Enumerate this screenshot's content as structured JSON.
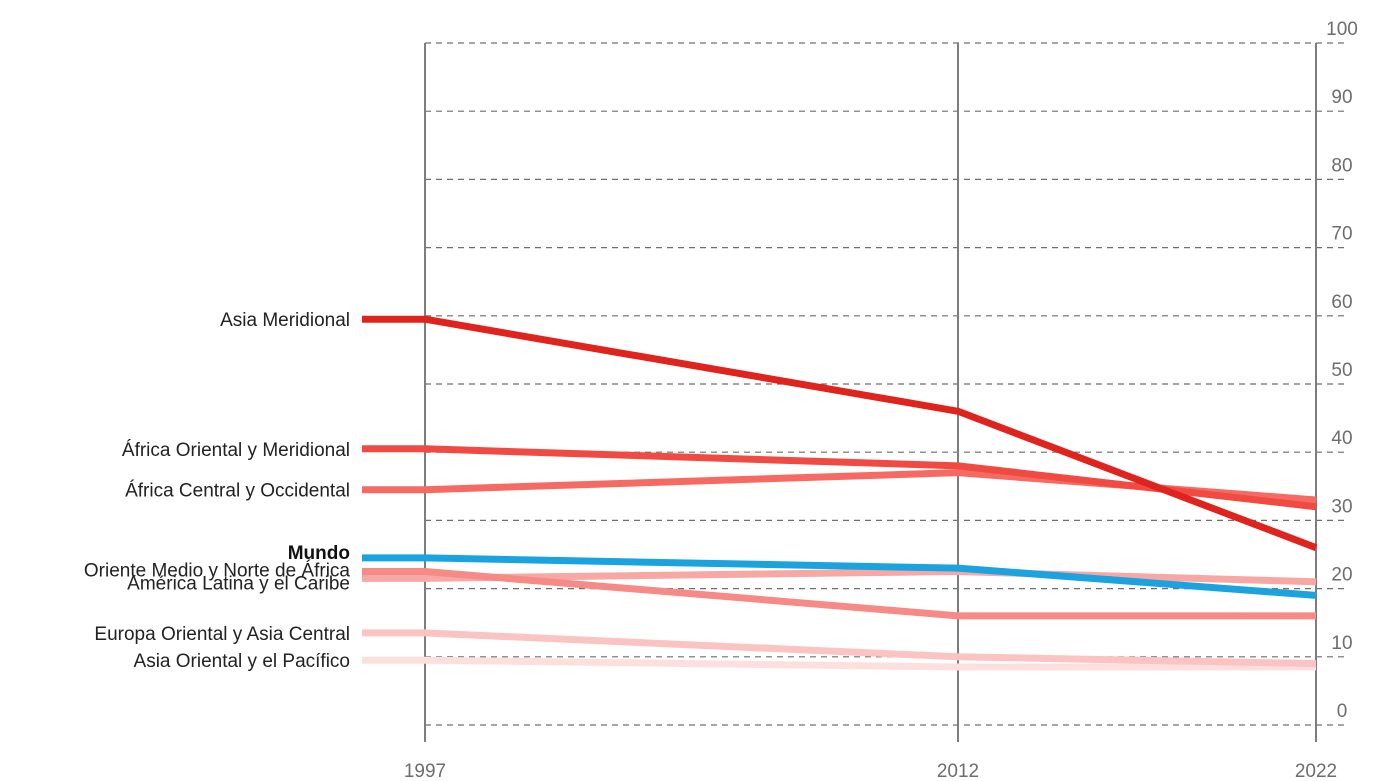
{
  "chart_data": {
    "type": "line",
    "title": "",
    "xlabel": "",
    "ylabel": "",
    "x": [
      "1997",
      "2012",
      "2022"
    ],
    "ylim": [
      0,
      100
    ],
    "yticks": [
      "0",
      "10",
      "20",
      "30",
      "40",
      "50",
      "60",
      "70",
      "80",
      "90",
      "100"
    ],
    "grid": true,
    "series": [
      {
        "name": "Asia Meridional",
        "values": [
          59.5,
          46,
          26
        ],
        "color": "#e0231d",
        "bold": false
      },
      {
        "name": "África Oriental y Meridional",
        "values": [
          40.5,
          38,
          32
        ],
        "color": "#f04a43",
        "bold": false
      },
      {
        "name": "África Central y Occidental",
        "values": [
          34.5,
          37,
          33
        ],
        "color": "#f76a63",
        "bold": false
      },
      {
        "name": "Mundo",
        "values": [
          24.5,
          23,
          19
        ],
        "color": "#1ba3e0",
        "bold": true
      },
      {
        "name": "Oriente Medio y Norte de África",
        "values": [
          22.5,
          16,
          16
        ],
        "color": "#f58a87",
        "bold": false
      },
      {
        "name": "América Latina y el Caribe",
        "values": [
          21.5,
          22.5,
          21
        ],
        "color": "#f7a8a5",
        "bold": false
      },
      {
        "name": "Europa Oriental y Asia Central",
        "values": [
          13.5,
          10,
          9
        ],
        "color": "#fbc4c2",
        "bold": false
      },
      {
        "name": "Asia Oriental y el Pacífico",
        "values": [
          9.5,
          8.5,
          8.5
        ],
        "color": "#fde0de",
        "bold": false
      }
    ]
  }
}
